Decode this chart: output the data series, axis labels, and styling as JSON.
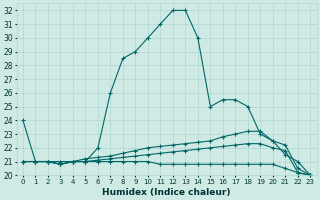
{
  "xlabel": "Humidex (Indice chaleur)",
  "background_color": "#cfeae5",
  "line_color": "#006666",
  "grid_color": "#b0d8d0",
  "xlim": [
    -0.5,
    23.5
  ],
  "ylim": [
    20,
    32.5
  ],
  "yticks": [
    20,
    21,
    22,
    23,
    24,
    25,
    26,
    27,
    28,
    29,
    30,
    31,
    32
  ],
  "xticks": [
    0,
    1,
    2,
    3,
    4,
    5,
    6,
    7,
    8,
    9,
    10,
    11,
    12,
    13,
    14,
    15,
    16,
    17,
    18,
    19,
    20,
    21,
    22,
    23
  ],
  "series": [
    {
      "x": [
        0,
        1,
        2,
        3,
        4,
        5,
        6,
        7,
        8,
        9,
        10,
        11,
        12,
        13,
        14,
        15,
        16,
        17,
        18,
        19,
        20,
        21,
        22,
        23
      ],
      "y": [
        24,
        21,
        21,
        21,
        21,
        21,
        22,
        26,
        28.5,
        29,
        30,
        31,
        32,
        32,
        30,
        25,
        25.5,
        25.5,
        25,
        23,
        22.5,
        21.5,
        21,
        20
      ]
    },
    {
      "x": [
        0,
        1,
        2,
        3,
        4,
        5,
        6,
        7,
        8,
        9,
        10,
        11,
        12,
        13,
        14,
        15,
        16,
        17,
        18,
        19,
        20,
        21,
        22,
        23
      ],
      "y": [
        21,
        21,
        21,
        20.8,
        21,
        21.2,
        21.3,
        21.4,
        21.6,
        21.8,
        22,
        22.1,
        22.2,
        22.3,
        22.4,
        22.5,
        22.8,
        23,
        23.2,
        23.2,
        22.5,
        22.2,
        20.5,
        20
      ]
    },
    {
      "x": [
        0,
        1,
        2,
        3,
        4,
        5,
        6,
        7,
        8,
        9,
        10,
        11,
        12,
        13,
        14,
        15,
        16,
        17,
        18,
        19,
        20,
        21,
        22,
        23
      ],
      "y": [
        21,
        21,
        21,
        20.8,
        21,
        21,
        21.1,
        21.2,
        21.3,
        21.4,
        21.5,
        21.6,
        21.7,
        21.8,
        21.9,
        22,
        22.1,
        22.2,
        22.3,
        22.3,
        22,
        21.8,
        20.2,
        20
      ]
    },
    {
      "x": [
        0,
        1,
        2,
        3,
        4,
        5,
        6,
        7,
        8,
        9,
        10,
        11,
        12,
        13,
        14,
        15,
        16,
        17,
        18,
        19,
        20,
        21,
        22,
        23
      ],
      "y": [
        21,
        21,
        21,
        20.8,
        21,
        21,
        21,
        21,
        21,
        21,
        21,
        20.8,
        20.8,
        20.8,
        20.8,
        20.8,
        20.8,
        20.8,
        20.8,
        20.8,
        20.8,
        20.5,
        20.2,
        20
      ]
    }
  ]
}
